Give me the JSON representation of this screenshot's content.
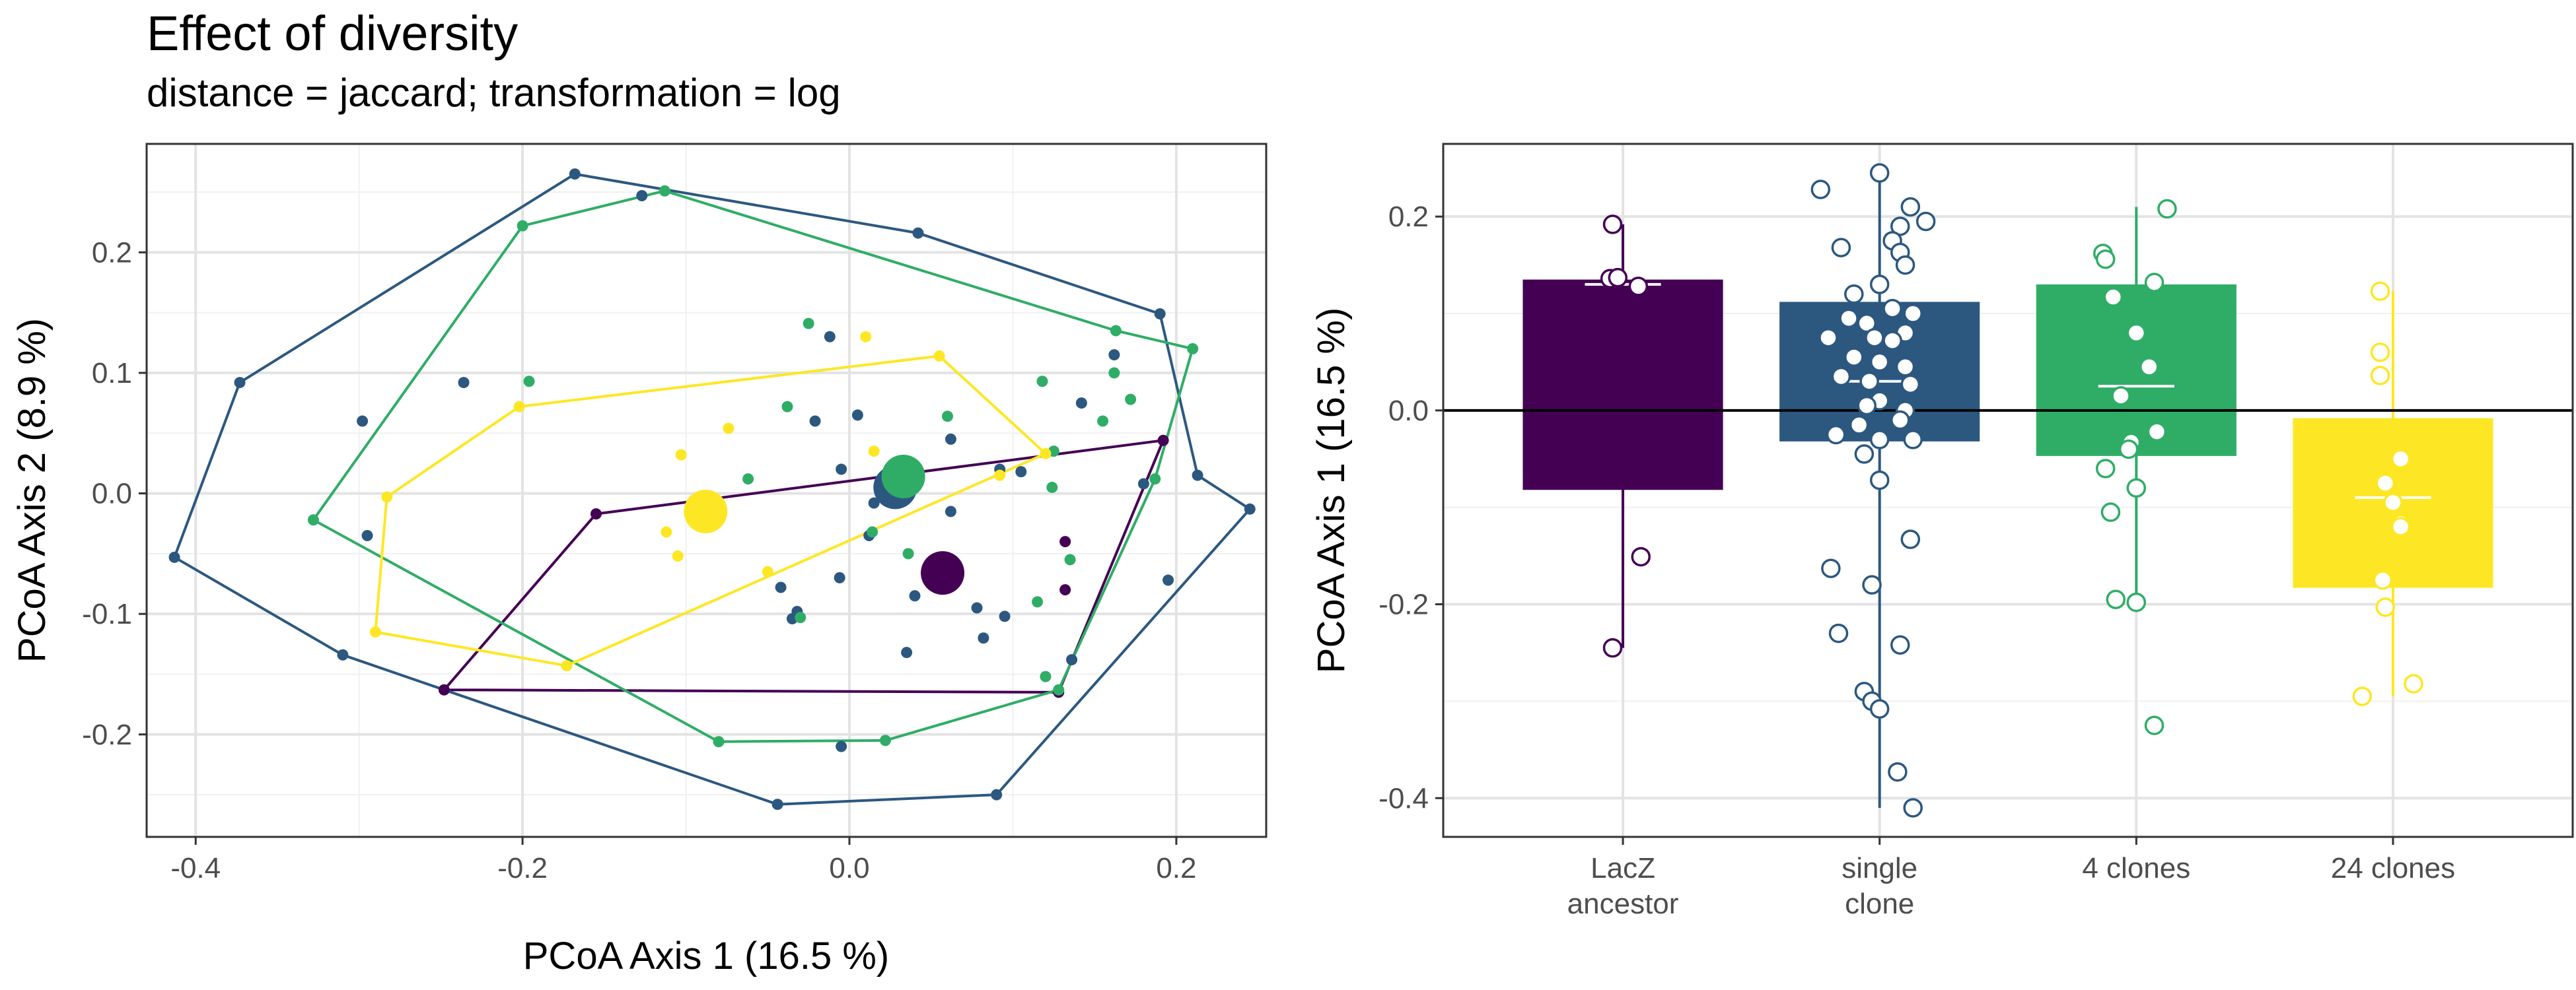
{
  "header": {
    "title": "Effect of diversity",
    "subtitle": "distance = jaccard; transformation = log"
  },
  "colors": {
    "LacZ ancestor": "#440154",
    "single clone": "#2c5880",
    "4 clones": "#2fad66",
    "24 clones": "#fde725"
  },
  "chart_data": [
    {
      "type": "scatter",
      "title": "Effect of diversity",
      "subtitle": "distance = jaccard; transformation = log",
      "xlabel": "PCoA Axis 1 (16.5 %)",
      "ylabel": "PCoA Axis 2 (8.9 %)",
      "xlim": [
        -0.43,
        0.255
      ],
      "ylim": [
        -0.285,
        0.29
      ],
      "x_ticks": [
        -0.4,
        -0.2,
        0.0,
        0.2
      ],
      "x_tick_labels": [
        "-0.4",
        "-0.2",
        "0.0",
        "0.2"
      ],
      "y_ticks": [
        -0.2,
        -0.1,
        0.0,
        0.1,
        0.2
      ],
      "y_tick_labels": [
        "-0.2",
        "-0.1",
        "0.0",
        "0.1",
        "0.2"
      ],
      "grid": true,
      "series": [
        {
          "group": "LacZ ancestor",
          "points": [
            [
              -0.155,
              -0.017
            ],
            [
              -0.248,
              -0.163
            ],
            [
              0.192,
              0.044
            ],
            [
              0.128,
              -0.165
            ],
            [
              0.132,
              -0.04
            ],
            [
              0.132,
              -0.08
            ]
          ],
          "hull": [
            [
              -0.155,
              -0.017
            ],
            [
              0.192,
              0.044
            ],
            [
              0.128,
              -0.165
            ],
            [
              -0.248,
              -0.163
            ]
          ],
          "centroid": [
            0.057,
            -0.066
          ]
        },
        {
          "group": "single clone",
          "points": [
            [
              -0.413,
              -0.053
            ],
            [
              -0.373,
              0.092
            ],
            [
              -0.168,
              0.265
            ],
            [
              0.042,
              0.216
            ],
            [
              0.19,
              0.149
            ],
            [
              0.213,
              0.015
            ],
            [
              0.245,
              -0.013
            ],
            [
              0.09,
              -0.25
            ],
            [
              -0.044,
              -0.258
            ],
            [
              -0.31,
              -0.134
            ],
            [
              -0.127,
              0.247
            ],
            [
              -0.236,
              0.092
            ],
            [
              -0.295,
              -0.035
            ],
            [
              -0.298,
              0.06
            ],
            [
              0.162,
              0.115
            ],
            [
              0.142,
              0.075
            ],
            [
              0.18,
              0.008
            ],
            [
              0.195,
              -0.072
            ],
            [
              -0.012,
              0.13
            ],
            [
              0.005,
              0.065
            ],
            [
              -0.021,
              0.06
            ],
            [
              -0.005,
              0.02
            ],
            [
              0.015,
              -0.008
            ],
            [
              0.032,
              0.015
            ],
            [
              0.062,
              0.045
            ],
            [
              0.092,
              0.02
            ],
            [
              0.105,
              0.018
            ],
            [
              0.012,
              -0.035
            ],
            [
              0.04,
              -0.085
            ],
            [
              0.078,
              -0.095
            ],
            [
              0.095,
              -0.102
            ],
            [
              -0.042,
              -0.078
            ],
            [
              -0.032,
              -0.098
            ],
            [
              -0.035,
              -0.104
            ],
            [
              -0.006,
              -0.07
            ],
            [
              0.062,
              -0.015
            ],
            [
              0.082,
              -0.12
            ],
            [
              0.035,
              -0.132
            ],
            [
              0.136,
              -0.138
            ],
            [
              -0.005,
              -0.21
            ]
          ],
          "hull": [
            [
              -0.413,
              -0.053
            ],
            [
              -0.373,
              0.092
            ],
            [
              -0.168,
              0.265
            ],
            [
              0.042,
              0.216
            ],
            [
              0.19,
              0.149
            ],
            [
              0.213,
              0.015
            ],
            [
              0.245,
              -0.013
            ],
            [
              0.09,
              -0.25
            ],
            [
              -0.044,
              -0.258
            ],
            [
              -0.248,
              -0.163
            ],
            [
              -0.31,
              -0.134
            ]
          ],
          "centroid": [
            0.028,
            0.005
          ]
        },
        {
          "group": "4 clones",
          "points": [
            [
              -0.328,
              -0.022
            ],
            [
              -0.2,
              0.222
            ],
            [
              -0.113,
              0.251
            ],
            [
              0.163,
              0.135
            ],
            [
              0.21,
              0.12
            ],
            [
              0.187,
              0.012
            ],
            [
              0.128,
              -0.163
            ],
            [
              0.022,
              -0.205
            ],
            [
              -0.08,
              -0.206
            ],
            [
              0.12,
              -0.152
            ],
            [
              -0.196,
              0.093
            ],
            [
              -0.025,
              0.141
            ],
            [
              -0.038,
              0.072
            ],
            [
              0.06,
              0.064
            ],
            [
              0.118,
              0.093
            ],
            [
              0.162,
              0.1
            ],
            [
              0.172,
              0.078
            ],
            [
              0.125,
              0.035
            ],
            [
              0.124,
              0.005
            ],
            [
              -0.062,
              0.012
            ],
            [
              0.014,
              -0.032
            ],
            [
              0.036,
              -0.05
            ],
            [
              -0.03,
              -0.103
            ],
            [
              0.135,
              -0.055
            ],
            [
              0.115,
              -0.09
            ],
            [
              0.155,
              0.06
            ]
          ],
          "hull": [
            [
              -0.328,
              -0.022
            ],
            [
              -0.2,
              0.222
            ],
            [
              -0.113,
              0.251
            ],
            [
              0.163,
              0.135
            ],
            [
              0.21,
              0.12
            ],
            [
              0.187,
              0.012
            ],
            [
              0.128,
              -0.163
            ],
            [
              0.022,
              -0.205
            ],
            [
              -0.08,
              -0.206
            ]
          ],
          "centroid": [
            0.033,
            0.014
          ]
        },
        {
          "group": "24 clones",
          "points": [
            [
              -0.202,
              0.072
            ],
            [
              -0.29,
              -0.115
            ],
            [
              -0.283,
              -0.003
            ],
            [
              -0.173,
              -0.143
            ],
            [
              0.055,
              0.114
            ],
            [
              0.12,
              0.033
            ],
            [
              0.092,
              0.015
            ],
            [
              0.01,
              0.13
            ],
            [
              -0.074,
              0.054
            ],
            [
              -0.103,
              0.032
            ],
            [
              -0.112,
              -0.032
            ],
            [
              -0.105,
              -0.052
            ],
            [
              -0.05,
              -0.065
            ],
            [
              0.015,
              0.035
            ]
          ],
          "hull": [
            [
              -0.202,
              0.072
            ],
            [
              0.055,
              0.114
            ],
            [
              0.12,
              0.033
            ],
            [
              -0.173,
              -0.143
            ],
            [
              -0.29,
              -0.115
            ],
            [
              -0.283,
              -0.003
            ]
          ],
          "centroid": [
            -0.088,
            -0.015
          ]
        }
      ]
    },
    {
      "type": "bar",
      "ylabel": "PCoA Axis 1 (16.5 %)",
      "categories": [
        "LacZ\nancestor",
        "single\nclone",
        "4 clones",
        "24 clones"
      ],
      "ylim": [
        -0.44,
        0.275
      ],
      "y_ticks": [
        -0.4,
        -0.2,
        0.0,
        0.2
      ],
      "y_tick_labels": [
        "-0.4",
        "-0.2",
        "0.0",
        "0.2"
      ],
      "reference_line": 0,
      "grid": true,
      "groups": [
        {
          "name": "LacZ ancestor",
          "box": [
            -0.082,
            0.135
          ],
          "median": 0.13,
          "whisker": [
            -0.245,
            0.192
          ],
          "points": [
            [
              -0.04,
              0.192
            ],
            [
              -0.05,
              0.136
            ],
            [
              -0.02,
              0.137
            ],
            [
              0.06,
              0.128
            ],
            [
              0.07,
              -0.151
            ],
            [
              -0.04,
              -0.245
            ]
          ]
        },
        {
          "name": "single clone",
          "box": [
            -0.032,
            0.112
          ],
          "median": 0.03,
          "whisker": [
            -0.41,
            0.245
          ],
          "points": [
            [
              0.0,
              0.245
            ],
            [
              -0.23,
              0.228
            ],
            [
              0.12,
              0.21
            ],
            [
              0.18,
              0.195
            ],
            [
              0.08,
              0.19
            ],
            [
              0.05,
              0.175
            ],
            [
              0.08,
              0.163
            ],
            [
              -0.15,
              0.168
            ],
            [
              0.1,
              0.15
            ],
            [
              0.0,
              0.13
            ],
            [
              -0.1,
              0.12
            ],
            [
              0.05,
              0.105
            ],
            [
              0.13,
              0.1
            ],
            [
              -0.12,
              0.095
            ],
            [
              -0.05,
              0.09
            ],
            [
              -0.02,
              0.075
            ],
            [
              0.1,
              0.08
            ],
            [
              -0.2,
              0.075
            ],
            [
              0.05,
              0.072
            ],
            [
              -0.1,
              0.055
            ],
            [
              0.0,
              0.05
            ],
            [
              0.1,
              0.045
            ],
            [
              -0.15,
              0.035
            ],
            [
              -0.04,
              0.03
            ],
            [
              0.12,
              0.027
            ],
            [
              0.0,
              0.01
            ],
            [
              -0.05,
              0.005
            ],
            [
              0.1,
              0.0
            ],
            [
              0.08,
              -0.01
            ],
            [
              -0.08,
              -0.015
            ],
            [
              -0.17,
              -0.025
            ],
            [
              0.13,
              -0.03
            ],
            [
              0.0,
              -0.03
            ],
            [
              -0.06,
              -0.045
            ],
            [
              0.0,
              -0.072
            ],
            [
              -0.03,
              -0.18
            ],
            [
              0.12,
              -0.133
            ],
            [
              -0.19,
              -0.163
            ],
            [
              -0.16,
              -0.23
            ],
            [
              0.08,
              -0.242
            ],
            [
              -0.06,
              -0.29
            ],
            [
              -0.03,
              -0.3
            ],
            [
              0.0,
              -0.308
            ],
            [
              0.07,
              -0.373
            ],
            [
              0.13,
              -0.41
            ]
          ]
        },
        {
          "name": "4 clones",
          "box": [
            -0.047,
            0.13
          ],
          "median": 0.025,
          "whisker": [
            -0.198,
            0.21
          ],
          "points": [
            [
              0.12,
              0.208
            ],
            [
              -0.13,
              0.162
            ],
            [
              -0.12,
              0.156
            ],
            [
              0.07,
              0.132
            ],
            [
              -0.09,
              0.117
            ],
            [
              0.0,
              0.08
            ],
            [
              0.05,
              0.045
            ],
            [
              -0.06,
              0.015
            ],
            [
              0.08,
              -0.022
            ],
            [
              -0.02,
              -0.033
            ],
            [
              -0.03,
              -0.04
            ],
            [
              -0.12,
              -0.06
            ],
            [
              0.0,
              -0.08
            ],
            [
              -0.1,
              -0.105
            ],
            [
              -0.08,
              -0.195
            ],
            [
              0.0,
              -0.198
            ],
            [
              0.07,
              -0.325
            ]
          ]
        },
        {
          "name": "24 clones",
          "box": [
            -0.183,
            -0.008
          ],
          "median": -0.09,
          "whisker": [
            -0.295,
            0.123
          ],
          "points": [
            [
              -0.05,
              0.123
            ],
            [
              -0.05,
              0.06
            ],
            [
              -0.05,
              0.036
            ],
            [
              0.03,
              -0.05
            ],
            [
              -0.03,
              -0.075
            ],
            [
              0.0,
              -0.095
            ],
            [
              0.03,
              -0.117
            ],
            [
              0.03,
              -0.12
            ],
            [
              -0.04,
              -0.175
            ],
            [
              -0.03,
              -0.203
            ],
            [
              0.08,
              -0.282
            ],
            [
              -0.12,
              -0.295
            ]
          ]
        }
      ]
    }
  ]
}
